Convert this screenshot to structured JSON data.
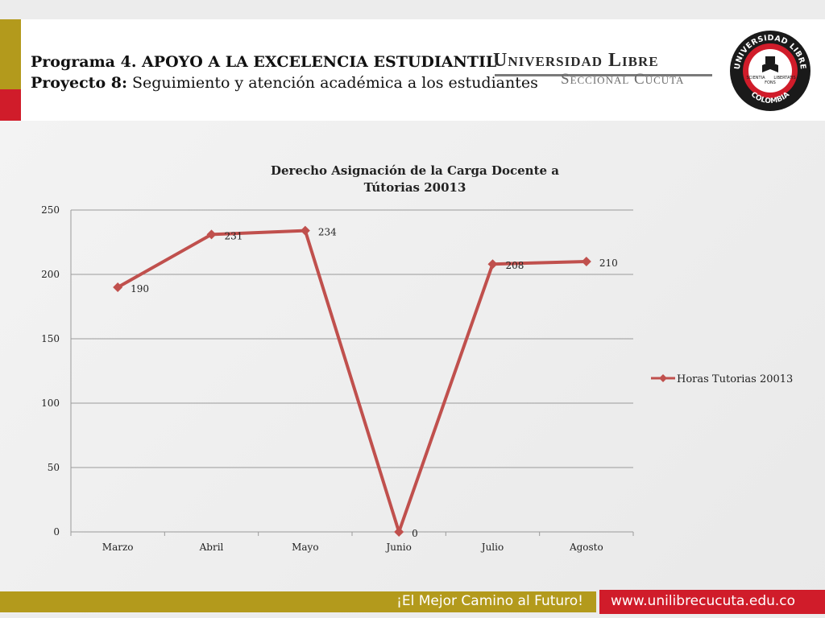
{
  "header": {
    "program_label": "Programa 4. APOYO A LA EXCELENCIA ESTUDIANTIL",
    "project_prefix": "Proyecto 8:",
    "project_text": " Seguimiento y atención académica a los estudiantes",
    "university_name": "Universidad Libre",
    "university_sub": "Seccional Cúcuta",
    "seal": {
      "top_text": "UNIVERSIDAD LIBRE",
      "bottom_text": "COLOMBIA",
      "left_text": "SCIENTIA",
      "center_text": "FONS",
      "right_text": "LIBERTATIS"
    }
  },
  "chart_data": {
    "type": "line",
    "title_line1": "Derecho  Asignación de la Carga Docente a",
    "title_line2": "Tútorias 20013",
    "categories": [
      "Marzo",
      "Abril",
      "Mayo",
      "Junio",
      "Julio",
      "Agosto"
    ],
    "series": [
      {
        "name": "Horas Tutorias 20013",
        "values": [
          190,
          231,
          234,
          0,
          208,
          210
        ],
        "color": "#c0504d"
      }
    ],
    "ylim": [
      0,
      250
    ],
    "yticks": [
      0,
      50,
      100,
      150,
      200,
      250
    ],
    "grid": true,
    "legend_position": "right",
    "data_labels": true
  },
  "footer": {
    "slogan": "¡El Mejor Camino al Futuro!",
    "url": "www.unilibrecucuta.edu.co"
  },
  "colors": {
    "gold": "#b39a1c",
    "red": "#d01c2a",
    "series": "#c0504d"
  }
}
